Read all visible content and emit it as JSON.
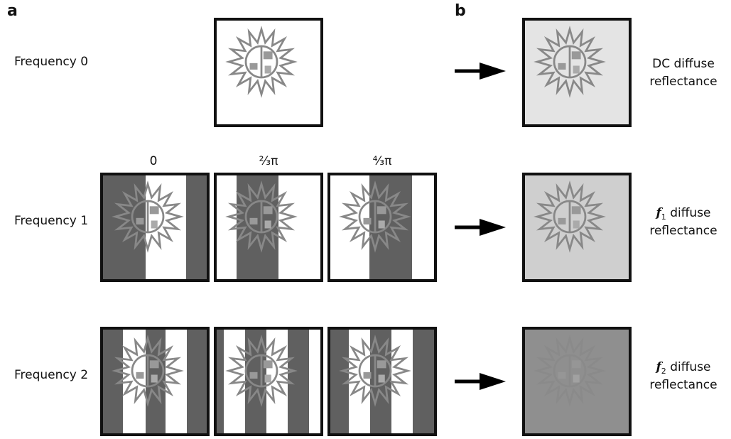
{
  "panel_labels": [
    "a",
    "b"
  ],
  "rows": [
    {
      "label": "Frequency 0"
    },
    {
      "label": "Frequency 1"
    },
    {
      "label": "Frequency 2"
    }
  ],
  "phase_labels": [
    "0",
    "²⁄₃π",
    "⁴⁄₃π"
  ],
  "results": [
    {
      "line1": "DC diffuse",
      "line2": "reflectance"
    },
    {
      "symbol": "f",
      "subscript": "1",
      "line1": " diffuse",
      "line2": "reflectance"
    },
    {
      "symbol": "f",
      "subscript": "2",
      "line1": " diffuse",
      "line2": "reflectance"
    }
  ]
}
